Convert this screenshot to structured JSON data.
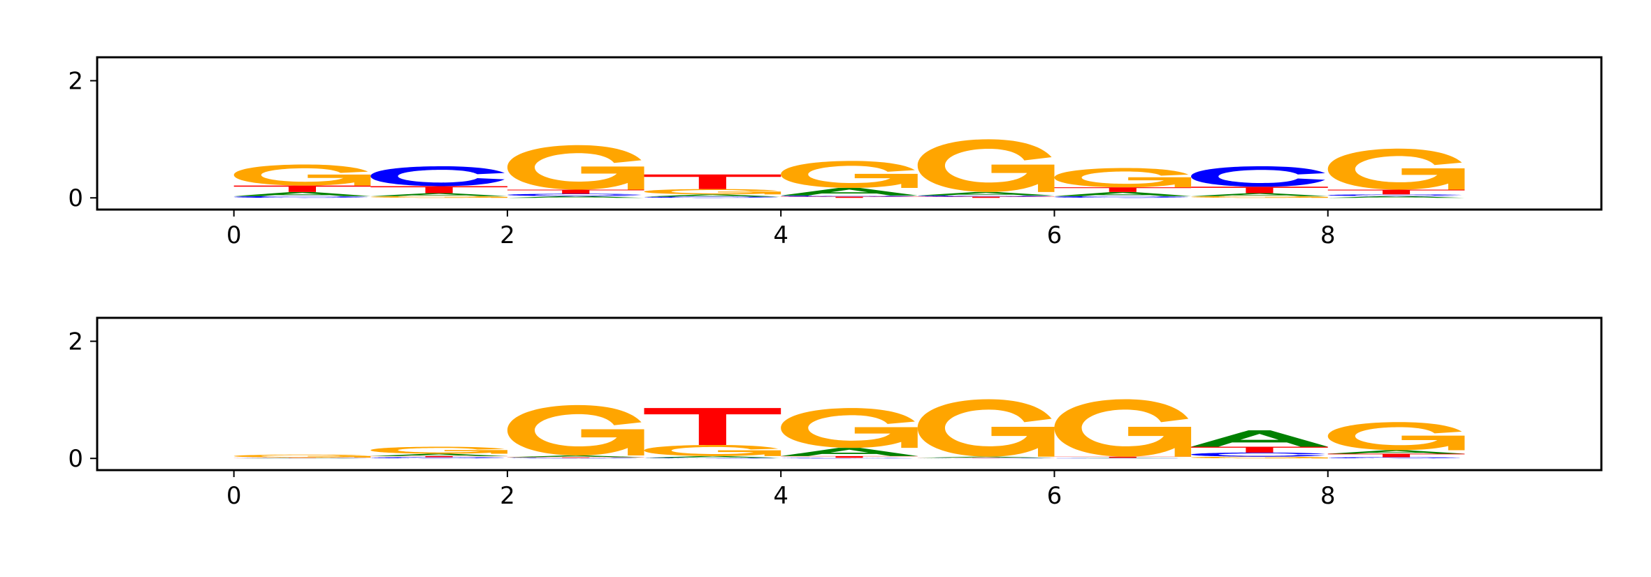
{
  "colors": {
    "A": "#008000",
    "C": "#0000ff",
    "G": "#ffa500",
    "T": "#ff0000"
  },
  "chart_data": [
    {
      "type": "sequence-logo",
      "xlim": [
        -1,
        10
      ],
      "ylim": [
        -0.2,
        2.4
      ],
      "xticks": [
        0,
        2,
        4,
        6,
        8
      ],
      "xtick_labels": [
        "0",
        "2",
        "4",
        "6",
        "8"
      ],
      "yticks": [
        0,
        2
      ],
      "ytick_labels": [
        "0",
        "2"
      ],
      "positions": [
        {
          "x": 0,
          "letters": [
            {
              "base": "C",
              "height": 0.03
            },
            {
              "base": "A",
              "height": 0.07
            },
            {
              "base": "T",
              "height": 0.11
            },
            {
              "base": "G",
              "height": 0.36
            }
          ]
        },
        {
          "x": 1,
          "letters": [
            {
              "base": "G",
              "height": 0.03
            },
            {
              "base": "A",
              "height": 0.05
            },
            {
              "base": "T",
              "height": 0.12
            },
            {
              "base": "C",
              "height": 0.34
            }
          ]
        },
        {
          "x": 2,
          "letters": [
            {
              "base": "A",
              "height": 0.03
            },
            {
              "base": "C",
              "height": 0.04
            },
            {
              "base": "T",
              "height": 0.07
            },
            {
              "base": "G",
              "height": 0.76
            }
          ]
        },
        {
          "x": 3,
          "letters": [
            {
              "base": "C",
              "height": 0.02
            },
            {
              "base": "A",
              "height": 0.04
            },
            {
              "base": "G",
              "height": 0.09
            },
            {
              "base": "T",
              "height": 0.25
            }
          ]
        },
        {
          "x": 4,
          "letters": [
            {
              "base": "T",
              "height": 0.02
            },
            {
              "base": "C",
              "height": 0.02
            },
            {
              "base": "A",
              "height": 0.13
            },
            {
              "base": "G",
              "height": 0.46
            }
          ]
        },
        {
          "x": 5,
          "letters": [
            {
              "base": "T",
              "height": 0.02
            },
            {
              "base": "C",
              "height": 0.02
            },
            {
              "base": "A",
              "height": 0.06
            },
            {
              "base": "G",
              "height": 0.9
            }
          ]
        },
        {
          "x": 6,
          "letters": [
            {
              "base": "C",
              "height": 0.03
            },
            {
              "base": "A",
              "height": 0.07
            },
            {
              "base": "T",
              "height": 0.08
            },
            {
              "base": "G",
              "height": 0.33
            }
          ]
        },
        {
          "x": 7,
          "letters": [
            {
              "base": "G",
              "height": 0.03
            },
            {
              "base": "A",
              "height": 0.05
            },
            {
              "base": "T",
              "height": 0.11
            },
            {
              "base": "C",
              "height": 0.35
            }
          ]
        },
        {
          "x": 8,
          "letters": [
            {
              "base": "A",
              "height": 0.03
            },
            {
              "base": "C",
              "height": 0.03
            },
            {
              "base": "T",
              "height": 0.08
            },
            {
              "base": "G",
              "height": 0.7
            }
          ]
        }
      ]
    },
    {
      "type": "sequence-logo",
      "xlim": [
        -1,
        10
      ],
      "ylim": [
        -0.2,
        2.4
      ],
      "xticks": [
        0,
        2,
        4,
        6,
        8
      ],
      "xtick_labels": [
        "0",
        "2",
        "4",
        "6",
        "8"
      ],
      "yticks": [
        0,
        2
      ],
      "ytick_labels": [
        "0",
        "2"
      ],
      "positions": [
        {
          "x": 0,
          "letters": [
            {
              "base": "A",
              "height": 0.005
            },
            {
              "base": "T",
              "height": 0.005
            },
            {
              "base": "C",
              "height": 0.005
            },
            {
              "base": "G",
              "height": 0.05
            }
          ]
        },
        {
          "x": 1,
          "letters": [
            {
              "base": "C",
              "height": 0.02
            },
            {
              "base": "T",
              "height": 0.02
            },
            {
              "base": "A",
              "height": 0.04
            },
            {
              "base": "G",
              "height": 0.12
            }
          ]
        },
        {
          "x": 2,
          "letters": [
            {
              "base": "C",
              "height": 0.01
            },
            {
              "base": "T",
              "height": 0.01
            },
            {
              "base": "A",
              "height": 0.03
            },
            {
              "base": "G",
              "height": 0.86
            }
          ]
        },
        {
          "x": 3,
          "letters": [
            {
              "base": "C",
              "height": 0.01
            },
            {
              "base": "A",
              "height": 0.03
            },
            {
              "base": "G",
              "height": 0.19
            },
            {
              "base": "T",
              "height": 0.63
            }
          ]
        },
        {
          "x": 4,
          "letters": [
            {
              "base": "C",
              "height": 0.01
            },
            {
              "base": "T",
              "height": 0.03
            },
            {
              "base": "A",
              "height": 0.14
            },
            {
              "base": "G",
              "height": 0.68
            }
          ]
        },
        {
          "x": 5,
          "letters": [
            {
              "base": "C",
              "height": 0.005
            },
            {
              "base": "T",
              "height": 0.005
            },
            {
              "base": "A",
              "height": 0.02
            },
            {
              "base": "G",
              "height": 0.98
            }
          ]
        },
        {
          "x": 6,
          "letters": [
            {
              "base": "C",
              "height": 0.005
            },
            {
              "base": "A",
              "height": 0.005
            },
            {
              "base": "T",
              "height": 0.02
            },
            {
              "base": "G",
              "height": 0.98
            }
          ]
        },
        {
          "x": 7,
          "letters": [
            {
              "base": "G",
              "height": 0.03
            },
            {
              "base": "C",
              "height": 0.07
            },
            {
              "base": "T",
              "height": 0.1
            },
            {
              "base": "A",
              "height": 0.28
            }
          ]
        },
        {
          "x": 8,
          "letters": [
            {
              "base": "C",
              "height": 0.02
            },
            {
              "base": "T",
              "height": 0.06
            },
            {
              "base": "A",
              "height": 0.06
            },
            {
              "base": "G",
              "height": 0.48
            }
          ]
        }
      ]
    }
  ]
}
